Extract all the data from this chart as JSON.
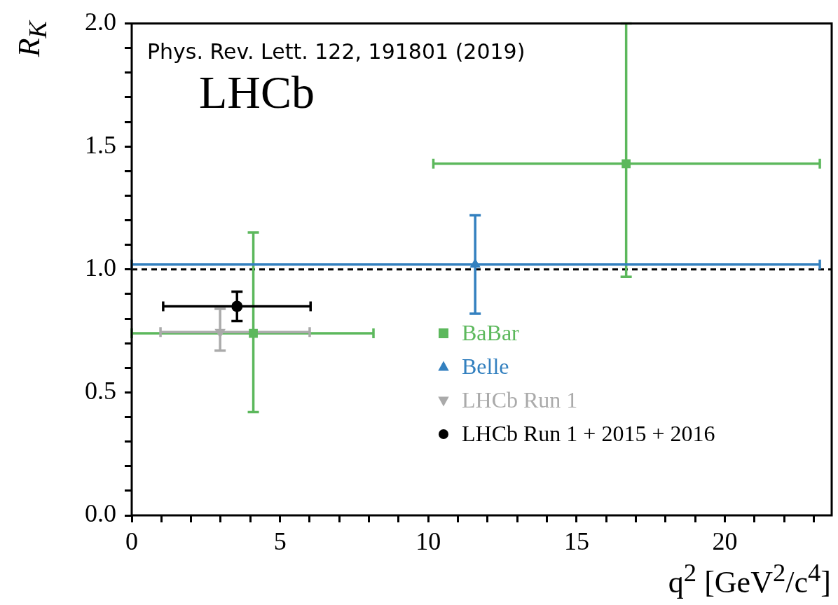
{
  "chart_data": {
    "type": "scatter",
    "ylabel": "R$_{K}$",
    "xlabel": "q$^{2}$ [GeV$^{2}$/c$^{4}$]",
    "annotations": [
      "Phys. Rev. Lett. 122, 191801 (2019)",
      "LHCb"
    ],
    "xlim": [
      0,
      23.6
    ],
    "xticks": [
      0,
      {
        "value": 1,
        "label": null
      },
      {
        "value": 2,
        "label": null
      },
      {
        "value": 3,
        "label": null
      },
      {
        "value": 4,
        "label": null
      },
      5,
      {
        "value": 6,
        "label": null
      },
      {
        "value": 7,
        "label": null
      },
      {
        "value": 8,
        "label": null
      },
      {
        "value": 9,
        "label": null
      },
      10,
      {
        "value": 11,
        "label": null
      },
      {
        "value": 12,
        "label": null
      },
      {
        "value": 13,
        "label": null
      },
      {
        "value": 14,
        "label": null
      },
      15,
      {
        "value": 16,
        "label": null
      },
      {
        "value": 17,
        "label": null
      },
      {
        "value": 18,
        "label": null
      },
      {
        "value": 19,
        "label": null
      },
      20,
      {
        "value": 21,
        "label": null
      },
      {
        "value": 22,
        "label": null
      },
      {
        "value": 23,
        "label": null
      }
    ],
    "ylim": [
      0,
      2
    ],
    "yticks": [
      {
        "value": 0,
        "label": "0.0"
      },
      {
        "value": 0.1,
        "label": null
      },
      {
        "value": 0.2,
        "label": null
      },
      {
        "value": 0.3,
        "label": null
      },
      {
        "value": 0.4,
        "label": null
      },
      0.5,
      {
        "value": 0.6,
        "label": null
      },
      {
        "value": 0.7,
        "label": null
      },
      {
        "value": 0.8,
        "label": null
      },
      {
        "value": 0.9,
        "label": null
      },
      {
        "value": 1,
        "label": "1.0"
      },
      {
        "value": 1.1,
        "label": null
      },
      {
        "value": 1.2,
        "label": null
      },
      {
        "value": 1.3,
        "label": null
      },
      {
        "value": 1.4,
        "label": null
      },
      1.5,
      {
        "value": 1.6,
        "label": null
      },
      {
        "value": 1.7,
        "label": null
      },
      {
        "value": 1.8,
        "label": null
      },
      {
        "value": 1.9,
        "label": null
      },
      {
        "value": 2,
        "label": "2.0"
      }
    ],
    "grid": false,
    "legend": "bottom right",
    "ref_lines": [
      {
        "axis": "y",
        "value": 1,
        "color": "#000000",
        "line_style": "dashed"
      }
    ],
    "series": [
      {
        "name": "BaBar",
        "color": "#5cb85c",
        "marker": "square",
        "x": [
          4.1,
          16.67
        ],
        "values": [
          0.74,
          1.43
        ],
        "errors": [
          [
            0.42,
            1.15
          ],
          [
            0.97,
            2.0
          ]
        ],
        "xerrors": [
          [
            0.0,
            8.15
          ],
          [
            10.17,
            23.2
          ]
        ]
      },
      {
        "name": "Belle",
        "color": "#3380bf",
        "marker": "triangle",
        "x": [
          11.58
        ],
        "values": [
          1.02
        ],
        "errors": [
          [
            0.82,
            1.22
          ]
        ],
        "xerrors": [
          [
            0.0,
            23.2
          ]
        ]
      },
      {
        "name": "LHCb Run 1",
        "color": "#aaaaaa",
        "marker": "triangle-down",
        "x": [
          2.98
        ],
        "values": [
          0.745
        ],
        "errors": [
          [
            0.67,
            0.84
          ]
        ],
        "xerrors": [
          [
            0.97,
            6.0
          ]
        ]
      },
      {
        "name": "LHCb Run 1 + 2015 + 2016",
        "color": "#000000",
        "marker": "circle",
        "x": [
          3.55
        ],
        "values": [
          0.85
        ],
        "errors": [
          [
            0.79,
            0.91
          ]
        ],
        "xerrors": [
          [
            1.06,
            6.03
          ]
        ]
      }
    ]
  }
}
